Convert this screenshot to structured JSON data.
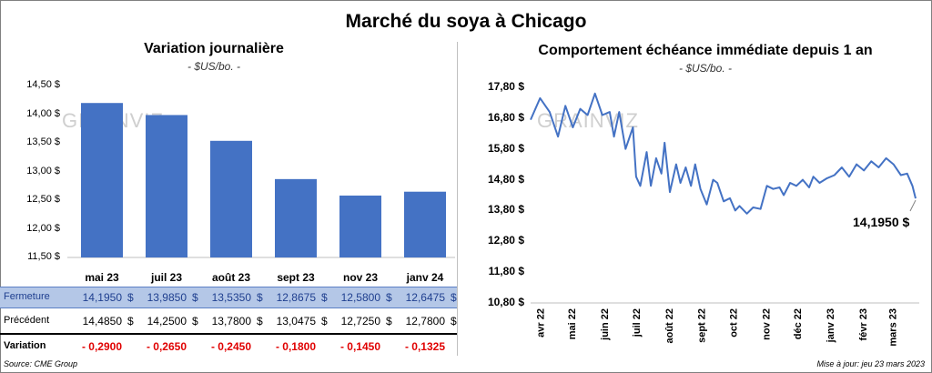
{
  "title": "Marché du soya à Chicago",
  "left": {
    "title": "Variation  journalière",
    "unit": "- $US/bo. -",
    "yticks": [
      "14,50 $",
      "14,00 $",
      "13,50 $",
      "13,00 $",
      "12,50 $",
      "12,00 $",
      "11,50 $"
    ],
    "table": {
      "fermeture_label": "Fermeture",
      "precedent_label": "Précédent",
      "variation_label": "Variation",
      "fermeture": [
        "14,1950",
        "13,9850",
        "13,5350",
        "12,8675",
        "12,5800",
        "12,6475"
      ],
      "precedent": [
        "14,4850",
        "14,2500",
        "13,7800",
        "13,0475",
        "12,7250",
        "12,7800"
      ],
      "variation": [
        "- 0,2900",
        "- 0,2650",
        "- 0,2450",
        "- 0,1800",
        "- 0,1450",
        "- 0,1325"
      ],
      "dollar": "$"
    }
  },
  "right": {
    "title": "Comportement  échéance immédiate depuis 1 an",
    "unit": "- $US/bo. -",
    "yticks": [
      "17,80 $",
      "16,80 $",
      "15,80 $",
      "14,80 $",
      "13,80 $",
      "12,80 $",
      "11,80 $",
      "10,80 $"
    ],
    "xticks": [
      "avr 22",
      "mai 22",
      "juin 22",
      "juil 22",
      "août 22",
      "sept 22",
      "oct 22",
      "nov 22",
      "déc 22",
      "janv 23",
      "févr 23",
      "mars 23"
    ],
    "last_label": "14,1950 $"
  },
  "watermark": "GRAINVIZ",
  "footer": {
    "source": "Source: CME Group",
    "updated": "Mise à jour: jeu 23 mars 2023"
  },
  "colors": {
    "bar": "#4472c4",
    "row_highlight": "#b4c7e7",
    "negative": "#e00000",
    "line": "#4472c4"
  },
  "chart_data": [
    {
      "type": "bar",
      "title": "Variation  journalière",
      "categories": [
        "mai 23",
        "juil 23",
        "août 23",
        "sept 23",
        "nov 23",
        "janv 24"
      ],
      "values": [
        14.195,
        13.985,
        13.535,
        12.8675,
        12.58,
        12.6475
      ],
      "ylim": [
        11.5,
        14.5
      ],
      "grid": false
    },
    {
      "type": "line",
      "title": "Comportement  échéance immédiate depuis 1 an",
      "ylim": [
        10.8,
        17.8
      ],
      "x": [
        "2022-03-23",
        "2022-04-01",
        "2022-04-10",
        "2022-04-18",
        "2022-04-25",
        "2022-05-02",
        "2022-05-09",
        "2022-05-16",
        "2022-05-23",
        "2022-05-30",
        "2022-06-06",
        "2022-06-10",
        "2022-06-15",
        "2022-06-21",
        "2022-06-28",
        "2022-07-01",
        "2022-07-05",
        "2022-07-11",
        "2022-07-15",
        "2022-07-20",
        "2022-07-25",
        "2022-07-28",
        "2022-08-02",
        "2022-08-08",
        "2022-08-12",
        "2022-08-17",
        "2022-08-22",
        "2022-08-26",
        "2022-08-31",
        "2022-09-06",
        "2022-09-12",
        "2022-09-16",
        "2022-09-22",
        "2022-09-28",
        "2022-10-03",
        "2022-10-07",
        "2022-10-14",
        "2022-10-20",
        "2022-10-27",
        "2022-11-02",
        "2022-11-08",
        "2022-11-14",
        "2022-11-18",
        "2022-11-24",
        "2022-11-30",
        "2022-12-06",
        "2022-12-12",
        "2022-12-16",
        "2022-12-22",
        "2022-12-29",
        "2023-01-05",
        "2023-01-12",
        "2023-01-19",
        "2023-01-26",
        "2023-02-02",
        "2023-02-09",
        "2023-02-16",
        "2023-02-23",
        "2023-03-02",
        "2023-03-09",
        "2023-03-15",
        "2023-03-20",
        "2023-03-23"
      ],
      "y": [
        16.75,
        17.45,
        17.0,
        16.2,
        17.2,
        16.5,
        17.1,
        16.9,
        17.6,
        16.9,
        17.0,
        16.2,
        17.0,
        15.8,
        16.5,
        14.9,
        14.6,
        15.7,
        14.6,
        15.5,
        15.0,
        16.0,
        14.4,
        15.3,
        14.7,
        15.2,
        14.6,
        15.3,
        14.5,
        14.0,
        14.8,
        14.7,
        14.1,
        14.2,
        13.8,
        13.95,
        13.7,
        13.9,
        13.85,
        14.6,
        14.5,
        14.55,
        14.3,
        14.7,
        14.6,
        14.8,
        14.55,
        14.9,
        14.7,
        14.85,
        14.95,
        15.2,
        14.9,
        15.3,
        15.1,
        15.4,
        15.2,
        15.5,
        15.3,
        14.95,
        15.0,
        14.6,
        14.195
      ]
    }
  ]
}
